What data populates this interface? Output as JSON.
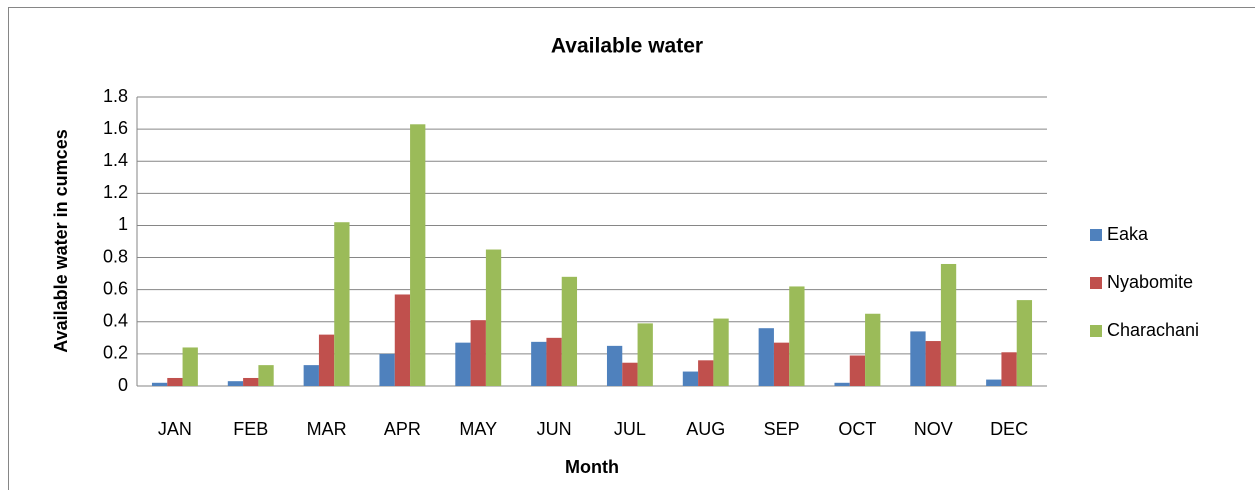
{
  "chart_data": {
    "type": "bar",
    "title": "Available water",
    "x_label": "Month",
    "y_label": "Available water in cumces",
    "categories": [
      "JAN",
      "FEB",
      "MAR",
      "APR",
      "MAY",
      "JUN",
      "JUL",
      "AUG",
      "SEP",
      "OCT",
      "NOV",
      "DEC"
    ],
    "series": [
      {
        "name": "Eaka",
        "color": "#4f81bd",
        "values": [
          0.02,
          0.03,
          0.13,
          0.2,
          0.27,
          0.275,
          0.25,
          0.09,
          0.36,
          0.02,
          0.34,
          0.04
        ]
      },
      {
        "name": "Nyabomite",
        "color": "#c0504d",
        "values": [
          0.05,
          0.05,
          0.32,
          0.57,
          0.41,
          0.3,
          0.145,
          0.16,
          0.27,
          0.19,
          0.28,
          0.21
        ]
      },
      {
        "name": "Charachani",
        "color": "#9bbb59",
        "values": [
          0.24,
          0.13,
          1.02,
          1.63,
          0.85,
          0.68,
          0.39,
          0.42,
          0.62,
          0.45,
          0.76,
          0.535
        ]
      }
    ],
    "ylim": [
      0,
      1.8
    ],
    "yticks": [
      0,
      0.2,
      0.4,
      0.6,
      0.8,
      1,
      1.2,
      1.4,
      1.6,
      1.8
    ],
    "grid": true,
    "legend": "right"
  }
}
